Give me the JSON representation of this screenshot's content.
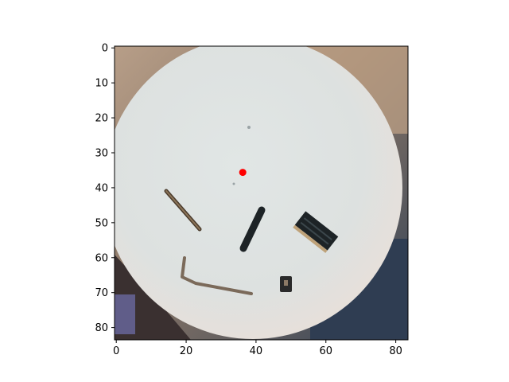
{
  "image": {
    "grid_size": [
      84,
      84
    ],
    "extent": {
      "x": [
        -0.5,
        83.5
      ],
      "y": [
        83.5,
        -0.5
      ]
    },
    "description_of_scene": "photo of a whitish round tray with several small dark components on it"
  },
  "axes": {
    "x_ticks": [
      {
        "value": 0,
        "label": "0"
      },
      {
        "value": 20,
        "label": "20"
      },
      {
        "value": 40,
        "label": "40"
      },
      {
        "value": 60,
        "label": "60"
      },
      {
        "value": 80,
        "label": "80"
      }
    ],
    "y_ticks": [
      {
        "value": 0,
        "label": "0"
      },
      {
        "value": 10,
        "label": "10"
      },
      {
        "value": 20,
        "label": "20"
      },
      {
        "value": 30,
        "label": "30"
      },
      {
        "value": 40,
        "label": "40"
      },
      {
        "value": 50,
        "label": "50"
      },
      {
        "value": 60,
        "label": "60"
      },
      {
        "value": 70,
        "label": "70"
      },
      {
        "value": 80,
        "label": "80"
      }
    ]
  },
  "marker": {
    "x": 36.2,
    "y": 35.6,
    "color": "#ff0000"
  },
  "colors": {
    "tray": "#dfe3e2",
    "tray_edge": "#e8e4df",
    "background_top": "#b99a7f",
    "background_bottom": "#3e4c5e",
    "component_dark": "#1d2326"
  }
}
